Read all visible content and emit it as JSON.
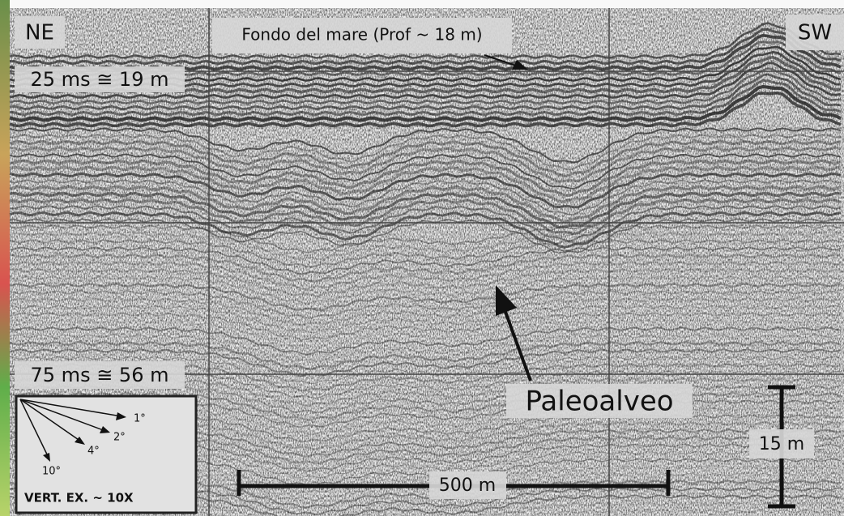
{
  "labels": {
    "ne": "NE",
    "sw": "SW",
    "seabed": "Fondo del mare (Prof ~ 18 m)",
    "depth_top": "25 ms ≅ 19 m",
    "depth_bottom": "75 ms ≅ 56 m",
    "paleochannel": "Paleoalveo",
    "vertical_scale": "15 m",
    "horizontal_scale": "500 m"
  },
  "inset": {
    "angles": [
      "1°",
      "2°",
      "4°",
      "10°"
    ],
    "caption": "VERT. EX. ~ 10X"
  }
}
